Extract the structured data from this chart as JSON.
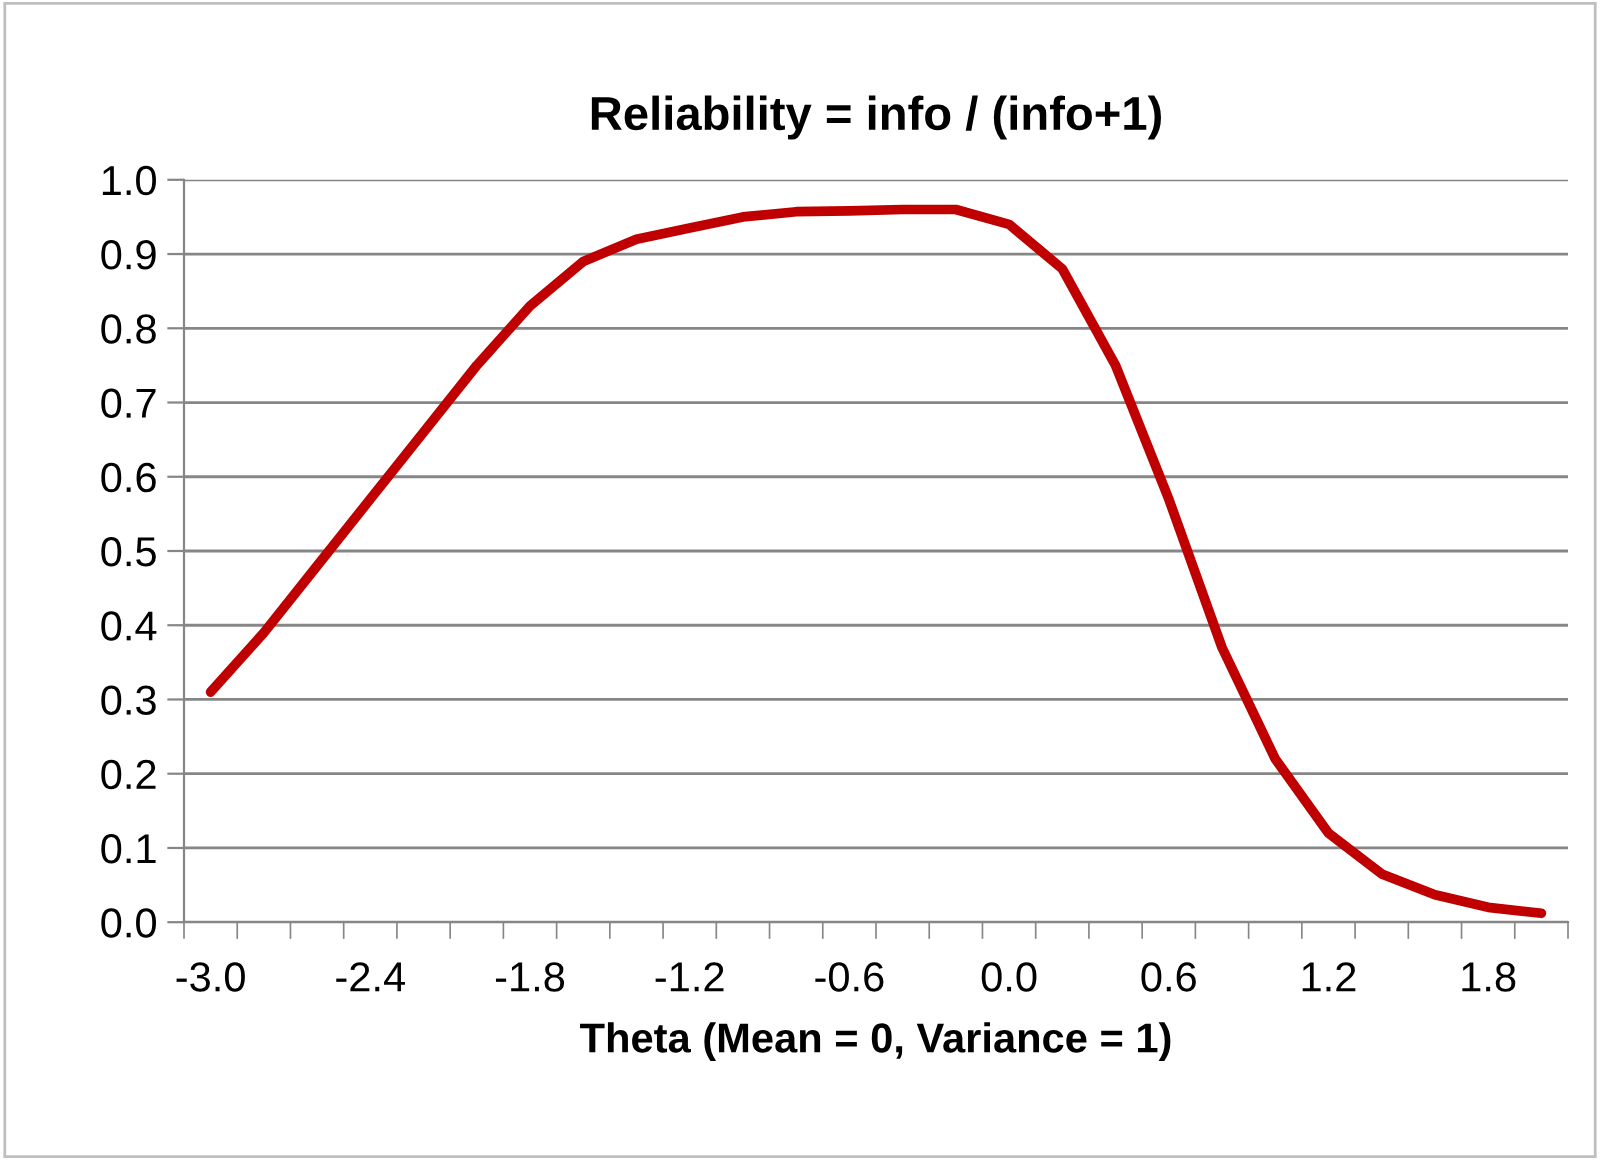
{
  "chart_data": {
    "type": "line",
    "title": "Reliability = info / (info+1)",
    "xlabel": "Theta (Mean = 0, Variance = 1)",
    "categories": [
      "-3.0",
      null,
      null,
      "-2.4",
      null,
      null,
      "-1.8",
      null,
      null,
      "-1.2",
      null,
      null,
      "-0.6",
      null,
      null,
      "0.0",
      null,
      null,
      "0.6",
      null,
      null,
      "1.2",
      null,
      null,
      "1.8",
      null
    ],
    "series": [
      {
        "color": "#c00000",
        "values": [
          0.31,
          0.39,
          0.48,
          0.57,
          0.66,
          0.75,
          0.83,
          0.89,
          0.92,
          0.935,
          0.95,
          0.957,
          0.958,
          0.96,
          0.96,
          0.94,
          0.88,
          0.75,
          0.57,
          0.37,
          0.22,
          0.12,
          0.065,
          0.037,
          0.02,
          0.012
        ]
      }
    ],
    "ylim": [
      0.0,
      1.0
    ],
    "yticks": [
      {
        "value": 0.0,
        "label": "0.0"
      },
      {
        "value": 0.1,
        "label": "0.1"
      },
      {
        "value": 0.2,
        "label": "0.2"
      },
      {
        "value": 0.3,
        "label": "0.3"
      },
      {
        "value": 0.4,
        "label": "0.4"
      },
      {
        "value": 0.5,
        "label": "0.5"
      },
      {
        "value": 0.6,
        "label": "0.6"
      },
      {
        "value": 0.7,
        "label": "0.7"
      },
      {
        "value": 0.8,
        "label": "0.8"
      },
      {
        "value": 0.9,
        "label": "0.9"
      },
      {
        "value": 1.0,
        "label": "1.0"
      }
    ],
    "grid": "y",
    "legend": false,
    "marker": "none",
    "line_style": "solid"
  }
}
